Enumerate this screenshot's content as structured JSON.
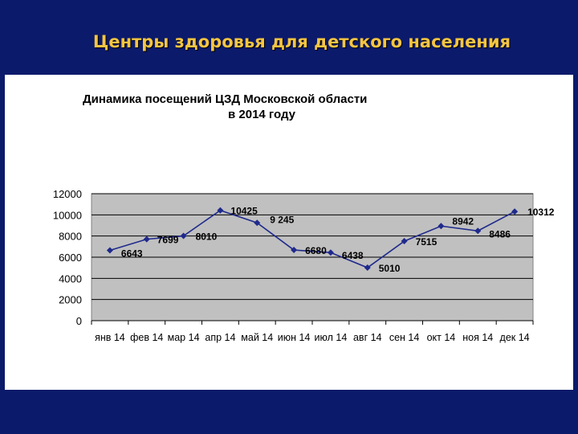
{
  "slide": {
    "title": "Центры здоровья для детского населения"
  },
  "chart_data": {
    "type": "line",
    "title": "Динамика посещений ЦЗД Московской области",
    "subtitle": "в 2014 году",
    "categories": [
      "янв 14",
      "фев 14",
      "мар 14",
      "апр 14",
      "май 14",
      "июн 14",
      "июл 14",
      "авг 14",
      "сен 14",
      "окт 14",
      "ноя 14",
      "дек 14"
    ],
    "values": [
      6643,
      7699,
      8010,
      10425,
      9245,
      6680,
      6438,
      5010,
      7515,
      8942,
      8486,
      10312
    ],
    "data_labels": [
      "6643",
      "7699",
      "8010",
      "10425",
      "9 245",
      "6680",
      "6438",
      "5010",
      "7515",
      "8942",
      "8486",
      "10312"
    ],
    "yticks": [
      "0",
      "2000",
      "4000",
      "6000",
      "8000",
      "10000",
      "12000"
    ],
    "ylim": [
      0,
      12000
    ],
    "grid": true,
    "colors": {
      "line": "#1f2a8c",
      "plot_bg": "#c0c0c0",
      "grid": "#000000"
    }
  }
}
